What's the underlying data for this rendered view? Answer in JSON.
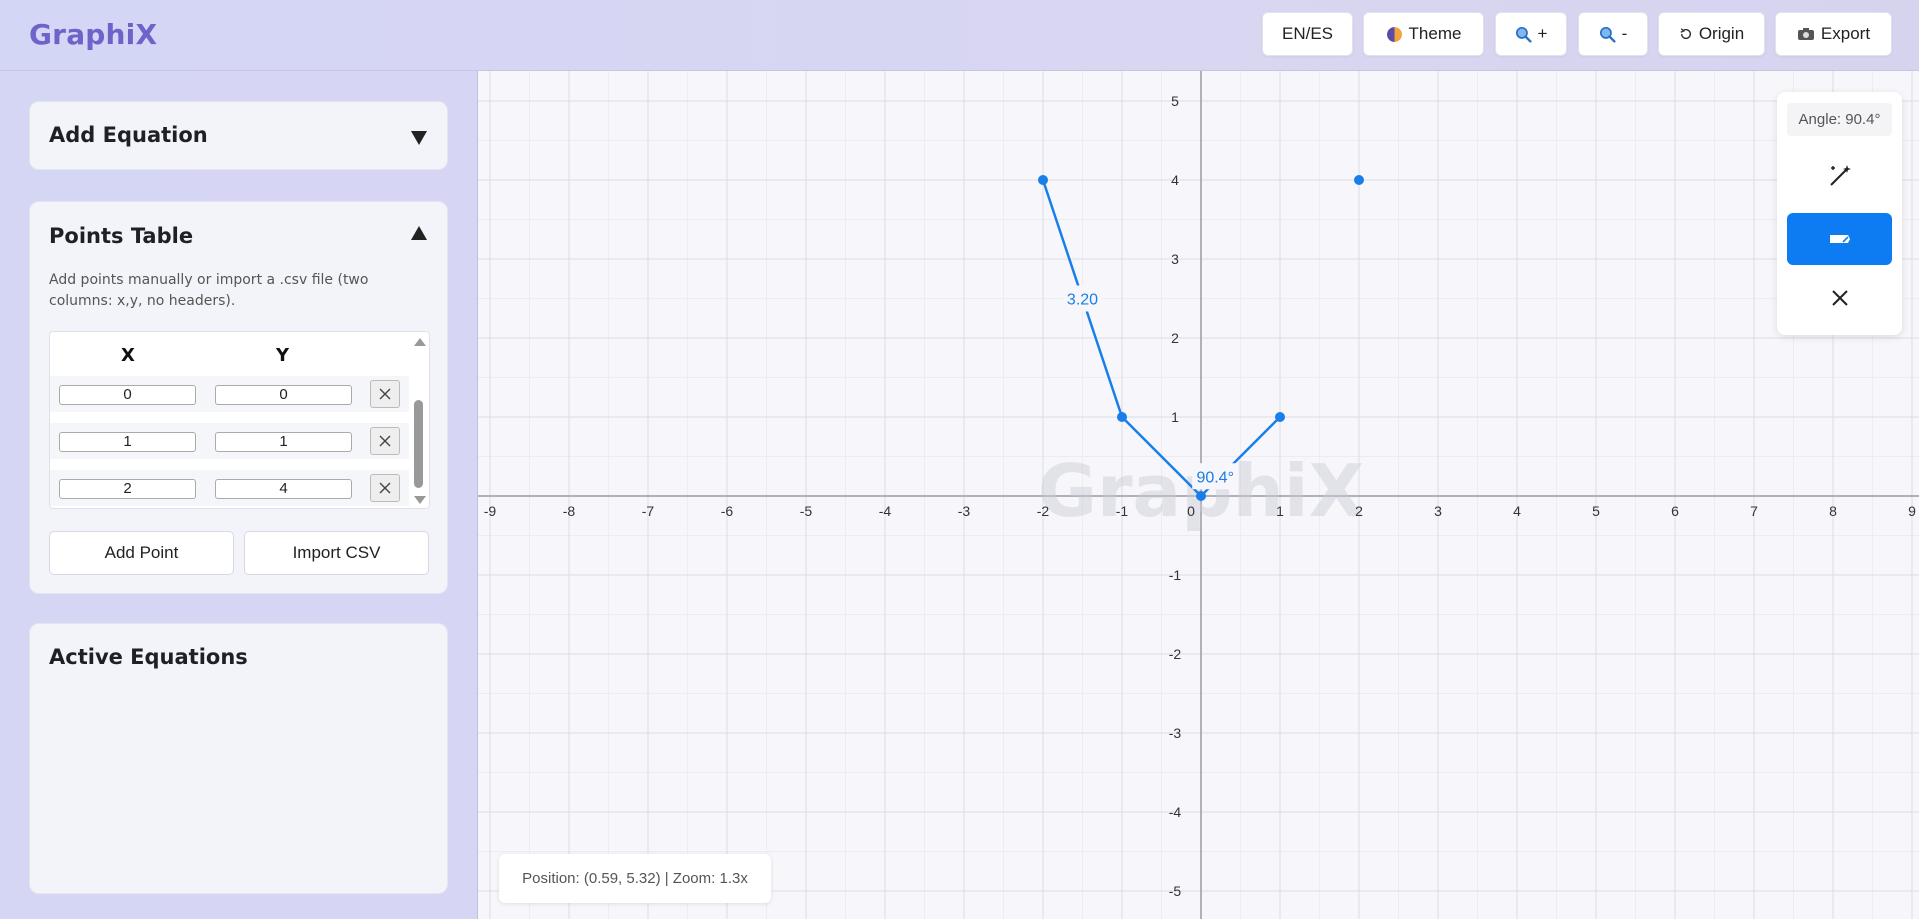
{
  "app": {
    "logo": "GraphiX"
  },
  "toolbar": {
    "lang_label": "EN/ES",
    "theme_label": "Theme",
    "zoom_in_label": "+",
    "zoom_out_label": "-",
    "origin_label": "Origin",
    "export_label": "Export"
  },
  "sidebar": {
    "add_equation": {
      "title": "Add Equation",
      "collapsed": true
    },
    "points_table": {
      "title": "Points Table",
      "help": "Add points manually or import a .csv file (two columns: x,y, no headers).",
      "col_x": "X",
      "col_y": "Y",
      "rows": [
        {
          "x": "0",
          "y": "0"
        },
        {
          "x": "1",
          "y": "1"
        },
        {
          "x": "2",
          "y": "4"
        }
      ],
      "add_point_label": "Add Point",
      "import_label": "Import CSV"
    },
    "active_equations": {
      "title": "Active Equations"
    }
  },
  "graph": {
    "watermark": "GraphiX",
    "accent": "#1a7ee8",
    "x_ticks": [
      "-9",
      "-8",
      "-7",
      "-6",
      "-5",
      "-4",
      "-3",
      "-2",
      "-1",
      "0",
      "1",
      "2",
      "3",
      "4",
      "5",
      "6",
      "7",
      "8",
      "9"
    ],
    "y_ticks": [
      "5",
      "4",
      "3",
      "2",
      "1",
      "-1",
      "-2",
      "-3",
      "-4",
      "-5"
    ],
    "points": [
      {
        "x": -2,
        "y": 4
      },
      {
        "x": -1,
        "y": 1
      },
      {
        "x": 0,
        "y": 0
      },
      {
        "x": 1,
        "y": 1
      },
      {
        "x": 2,
        "y": 4
      }
    ],
    "polyline": [
      [
        -2,
        4
      ],
      [
        -1,
        1
      ],
      [
        0,
        0
      ],
      [
        1,
        1
      ]
    ],
    "distance_label": "3.20",
    "angle_label": "90.4°"
  },
  "tools": {
    "angle_readout": "Angle: 90.4°",
    "items": [
      {
        "icon": "magic-wand-icon",
        "active": false
      },
      {
        "icon": "ruler-icon",
        "active": true
      },
      {
        "icon": "close-icon",
        "active": false
      }
    ]
  },
  "status": {
    "text": "Position: (0.59, 5.32) | Zoom: 1.3x"
  }
}
